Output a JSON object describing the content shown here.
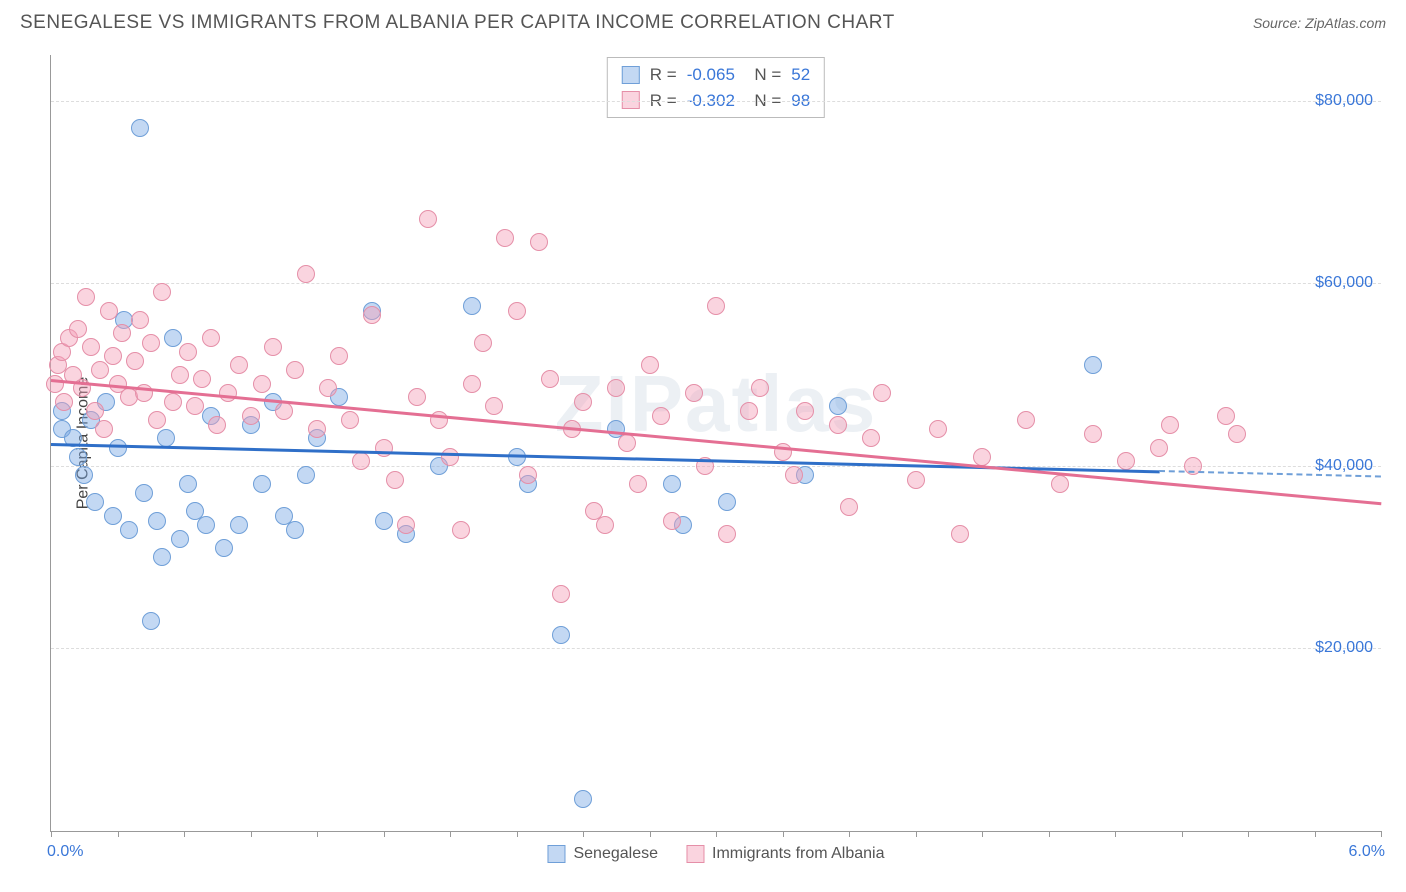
{
  "header": {
    "title": "SENEGALESE VS IMMIGRANTS FROM ALBANIA PER CAPITA INCOME CORRELATION CHART",
    "source": "Source: ZipAtlas.com"
  },
  "chart": {
    "type": "scatter",
    "watermark": "ZIPatlas",
    "ylabel": "Per Capita Income",
    "xlim": [
      0,
      6
    ],
    "ylim": [
      0,
      85000
    ],
    "xticks_pct": [
      0,
      5,
      10,
      15,
      20,
      25,
      30,
      35,
      40,
      45,
      50,
      55,
      60,
      65,
      70,
      75,
      80,
      85,
      90,
      95,
      100
    ],
    "xlabel_min": "0.0%",
    "xlabel_max": "6.0%",
    "yticks": [
      {
        "value": 20000,
        "label": "$20,000"
      },
      {
        "value": 40000,
        "label": "$40,000"
      },
      {
        "value": 60000,
        "label": "$60,000"
      },
      {
        "value": 80000,
        "label": "$80,000"
      }
    ],
    "colors": {
      "blue_fill": "rgba(122,168,228,0.45)",
      "blue_stroke": "#6f9fd8",
      "pink_fill": "rgba(244,160,185,0.45)",
      "pink_stroke": "#e58fa8",
      "blue_line": "#2f6fc8",
      "pink_line": "#e46f93",
      "tick_label": "#3a77d8",
      "grid": "#dddddd"
    },
    "point_radius": 9,
    "series": [
      {
        "name": "Senegalese",
        "color_key": "blue",
        "R": "-0.065",
        "N": "52",
        "trend": {
          "x0": 0.0,
          "y0": 42500,
          "x1": 5.0,
          "y1": 39500
        },
        "points": [
          [
            0.05,
            44000
          ],
          [
            0.05,
            46000
          ],
          [
            0.1,
            43000
          ],
          [
            0.12,
            41000
          ],
          [
            0.15,
            39000
          ],
          [
            0.18,
            45000
          ],
          [
            0.2,
            36000
          ],
          [
            0.25,
            47000
          ],
          [
            0.28,
            34500
          ],
          [
            0.3,
            42000
          ],
          [
            0.33,
            56000
          ],
          [
            0.35,
            33000
          ],
          [
            0.4,
            77000
          ],
          [
            0.42,
            37000
          ],
          [
            0.45,
            23000
          ],
          [
            0.48,
            34000
          ],
          [
            0.5,
            30000
          ],
          [
            0.52,
            43000
          ],
          [
            0.55,
            54000
          ],
          [
            0.58,
            32000
          ],
          [
            0.62,
            38000
          ],
          [
            0.65,
            35000
          ],
          [
            0.7,
            33500
          ],
          [
            0.72,
            45500
          ],
          [
            0.78,
            31000
          ],
          [
            0.85,
            33500
          ],
          [
            0.9,
            44500
          ],
          [
            0.95,
            38000
          ],
          [
            1.0,
            47000
          ],
          [
            1.05,
            34500
          ],
          [
            1.1,
            33000
          ],
          [
            1.15,
            39000
          ],
          [
            1.2,
            43000
          ],
          [
            1.3,
            47500
          ],
          [
            1.45,
            57000
          ],
          [
            1.5,
            34000
          ],
          [
            1.6,
            32500
          ],
          [
            1.75,
            40000
          ],
          [
            1.9,
            57500
          ],
          [
            2.1,
            41000
          ],
          [
            2.15,
            38000
          ],
          [
            2.3,
            21500
          ],
          [
            2.4,
            3500
          ],
          [
            2.55,
            44000
          ],
          [
            2.8,
            38000
          ],
          [
            2.85,
            33500
          ],
          [
            3.05,
            36000
          ],
          [
            3.4,
            39000
          ],
          [
            3.55,
            46500
          ],
          [
            4.7,
            51000
          ]
        ]
      },
      {
        "name": "Immigants from Albania",
        "legend_label": "Immigrants from Albania",
        "color_key": "pink",
        "R": "-0.302",
        "N": "98",
        "trend": {
          "x0": 0.0,
          "y0": 49500,
          "x1": 6.0,
          "y1": 36000
        },
        "points": [
          [
            0.02,
            49000
          ],
          [
            0.03,
            51000
          ],
          [
            0.05,
            52500
          ],
          [
            0.06,
            47000
          ],
          [
            0.08,
            54000
          ],
          [
            0.1,
            50000
          ],
          [
            0.12,
            55000
          ],
          [
            0.14,
            48500
          ],
          [
            0.16,
            58500
          ],
          [
            0.18,
            53000
          ],
          [
            0.2,
            46000
          ],
          [
            0.22,
            50500
          ],
          [
            0.24,
            44000
          ],
          [
            0.26,
            57000
          ],
          [
            0.28,
            52000
          ],
          [
            0.3,
            49000
          ],
          [
            0.32,
            54500
          ],
          [
            0.35,
            47500
          ],
          [
            0.38,
            51500
          ],
          [
            0.4,
            56000
          ],
          [
            0.42,
            48000
          ],
          [
            0.45,
            53500
          ],
          [
            0.48,
            45000
          ],
          [
            0.5,
            59000
          ],
          [
            0.55,
            47000
          ],
          [
            0.58,
            50000
          ],
          [
            0.62,
            52500
          ],
          [
            0.65,
            46500
          ],
          [
            0.68,
            49500
          ],
          [
            0.72,
            54000
          ],
          [
            0.75,
            44500
          ],
          [
            0.8,
            48000
          ],
          [
            0.85,
            51000
          ],
          [
            0.9,
            45500
          ],
          [
            0.95,
            49000
          ],
          [
            1.0,
            53000
          ],
          [
            1.05,
            46000
          ],
          [
            1.1,
            50500
          ],
          [
            1.15,
            61000
          ],
          [
            1.2,
            44000
          ],
          [
            1.25,
            48500
          ],
          [
            1.3,
            52000
          ],
          [
            1.35,
            45000
          ],
          [
            1.4,
            40500
          ],
          [
            1.45,
            56500
          ],
          [
            1.5,
            42000
          ],
          [
            1.55,
            38500
          ],
          [
            1.6,
            33500
          ],
          [
            1.65,
            47500
          ],
          [
            1.7,
            67000
          ],
          [
            1.75,
            45000
          ],
          [
            1.8,
            41000
          ],
          [
            1.85,
            33000
          ],
          [
            1.9,
            49000
          ],
          [
            1.95,
            53500
          ],
          [
            2.0,
            46500
          ],
          [
            2.05,
            65000
          ],
          [
            2.1,
            57000
          ],
          [
            2.15,
            39000
          ],
          [
            2.2,
            64500
          ],
          [
            2.25,
            49500
          ],
          [
            2.3,
            26000
          ],
          [
            2.35,
            44000
          ],
          [
            2.4,
            47000
          ],
          [
            2.45,
            35000
          ],
          [
            2.5,
            33500
          ],
          [
            2.55,
            48500
          ],
          [
            2.6,
            42500
          ],
          [
            2.65,
            38000
          ],
          [
            2.7,
            51000
          ],
          [
            2.75,
            45500
          ],
          [
            2.8,
            34000
          ],
          [
            2.9,
            48000
          ],
          [
            2.95,
            40000
          ],
          [
            3.0,
            57500
          ],
          [
            3.05,
            32500
          ],
          [
            3.15,
            46000
          ],
          [
            3.2,
            48500
          ],
          [
            3.3,
            41500
          ],
          [
            3.35,
            39000
          ],
          [
            3.4,
            46000
          ],
          [
            3.55,
            44500
          ],
          [
            3.6,
            35500
          ],
          [
            3.7,
            43000
          ],
          [
            3.75,
            48000
          ],
          [
            3.9,
            38500
          ],
          [
            4.0,
            44000
          ],
          [
            4.1,
            32500
          ],
          [
            4.2,
            41000
          ],
          [
            4.4,
            45000
          ],
          [
            4.55,
            38000
          ],
          [
            4.7,
            43500
          ],
          [
            4.85,
            40500
          ],
          [
            5.0,
            42000
          ],
          [
            5.05,
            44500
          ],
          [
            5.15,
            40000
          ],
          [
            5.3,
            45500
          ],
          [
            5.35,
            43500
          ]
        ]
      }
    ]
  }
}
